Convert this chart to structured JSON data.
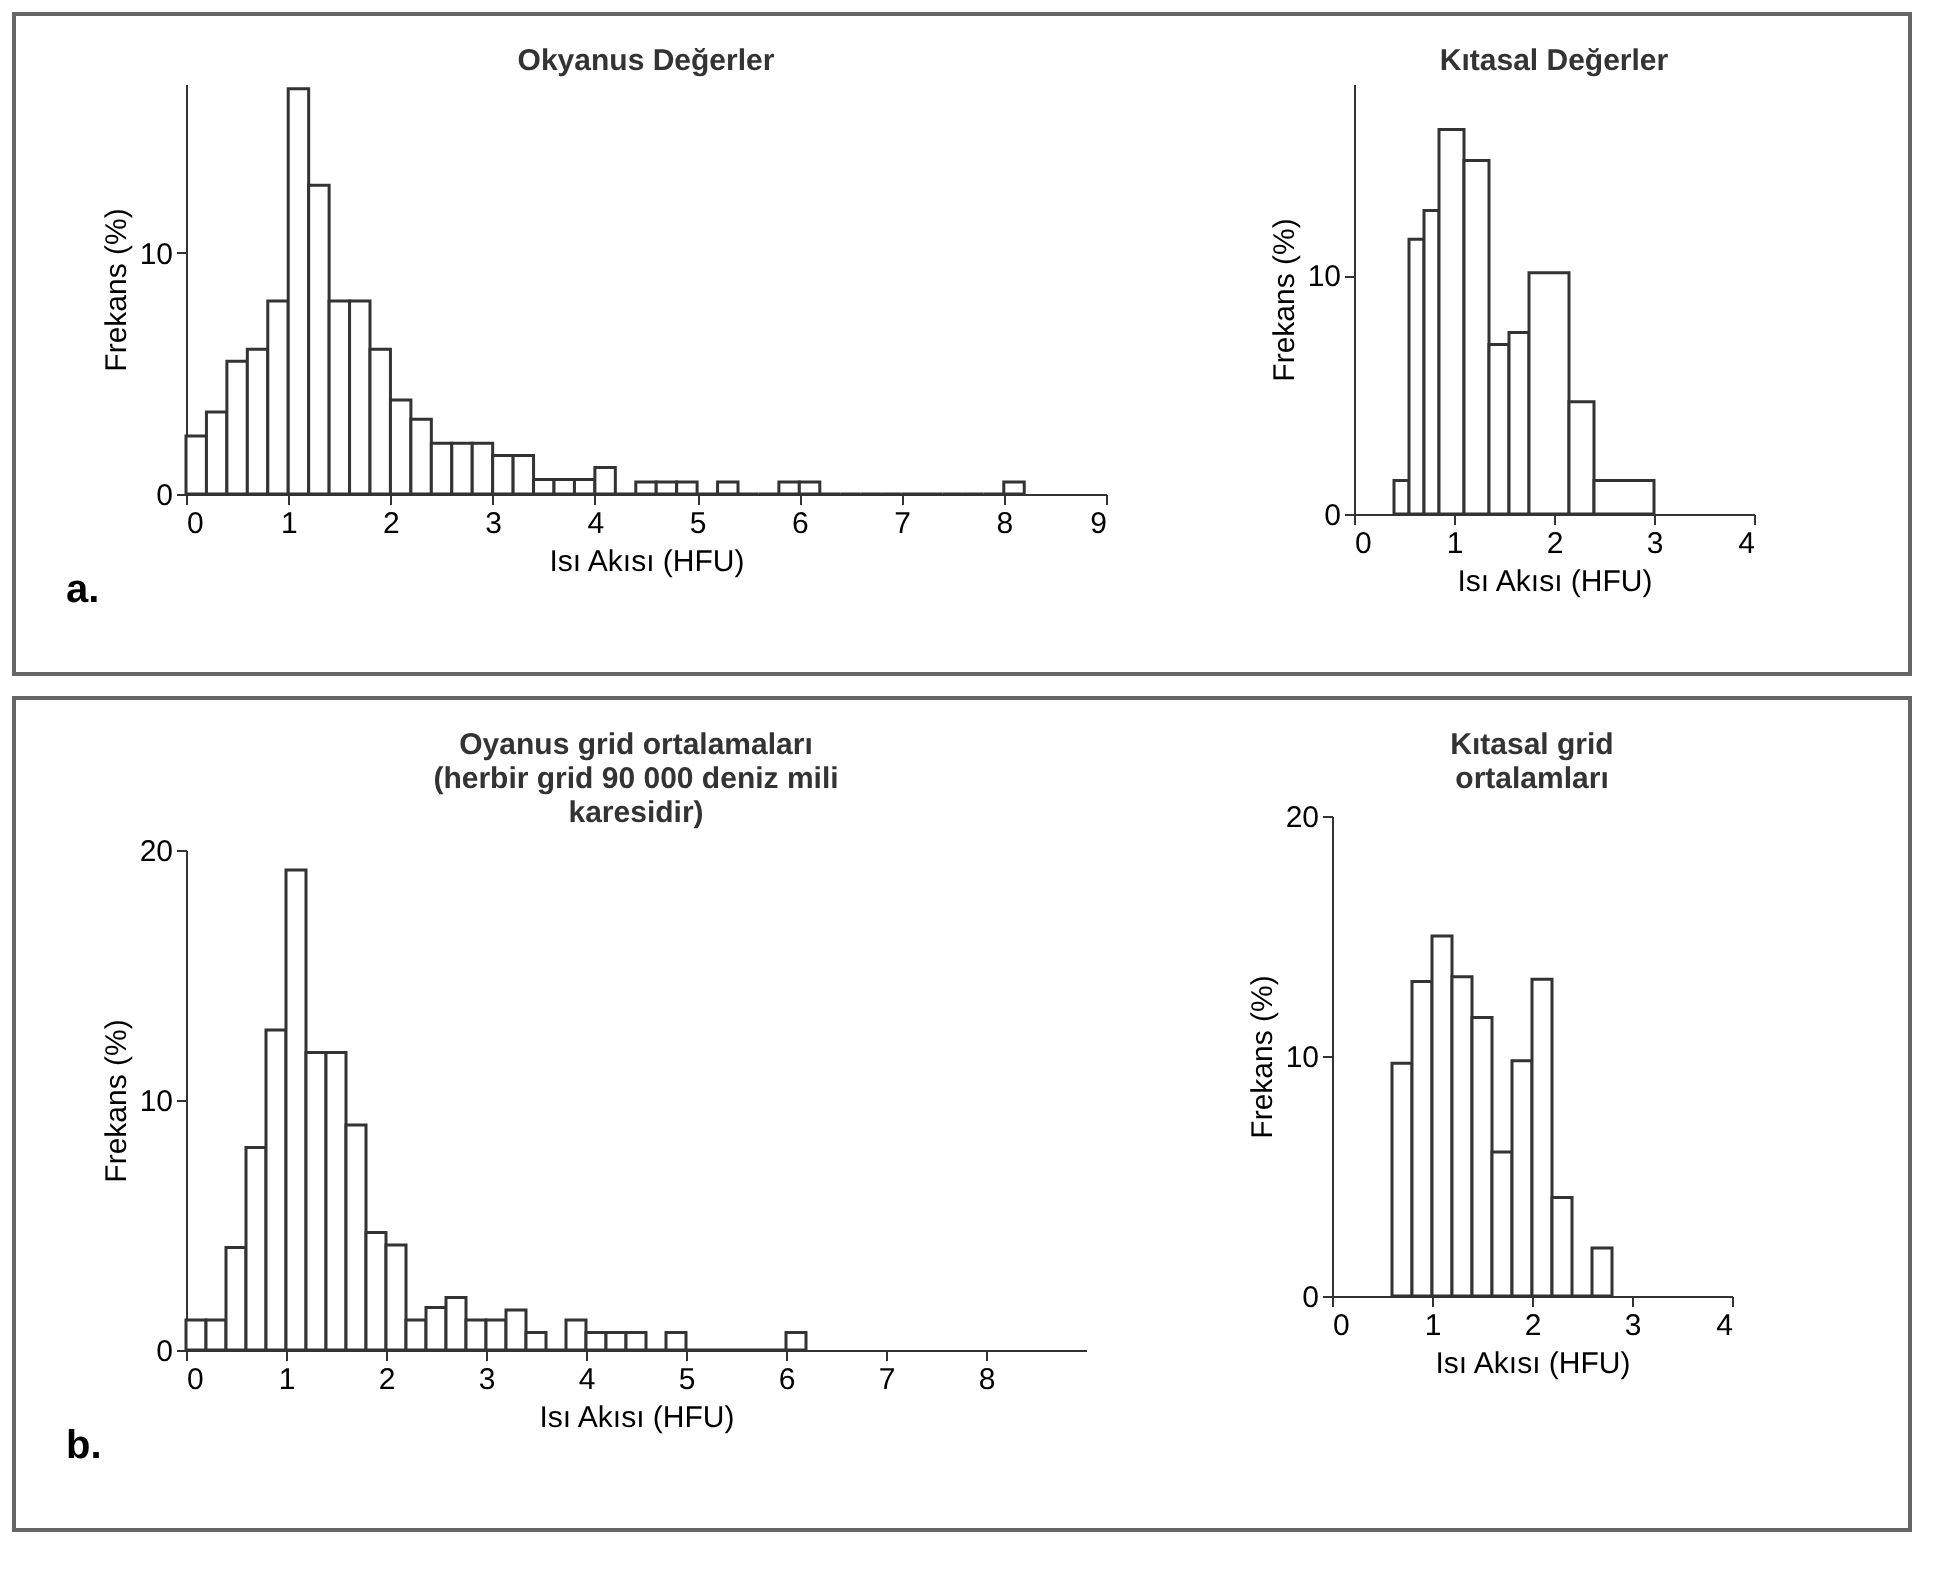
{
  "chart_data": [
    {
      "type": "histogram",
      "title": "Okyanus Değerler",
      "xlabel": "Isı Akısı (HFU)",
      "ylabel": "Frekans (%)",
      "annotations": [
        "a."
      ],
      "color": "#333333",
      "bins": [
        0,
        0.2,
        0.4,
        0.6,
        0.8,
        1.0,
        1.2,
        1.4,
        1.6,
        1.8,
        2.0,
        2.2,
        2.4,
        2.6,
        2.8,
        3.0,
        3.2,
        3.4,
        3.6,
        3.8,
        4.0,
        4.2,
        4.4,
        4.6,
        4.8,
        5.0,
        5.2,
        5.4,
        5.6,
        5.8,
        6.0,
        6.2,
        6.4,
        6.6,
        6.8,
        7.0,
        7.2,
        7.4,
        7.6,
        7.8,
        8.0,
        8.2
      ],
      "values": [
        2.4,
        3.4,
        5.5,
        6.0,
        8.0,
        16.8,
        12.8,
        8.0,
        8.0,
        6.0,
        3.9,
        3.1,
        2.1,
        2.1,
        2.1,
        1.6,
        1.6,
        0.6,
        0.6,
        0.6,
        1.1,
        0,
        0.5,
        0.5,
        0.5,
        0,
        0.5,
        0,
        0,
        0.5,
        0.5,
        0,
        0,
        0,
        0,
        0,
        0,
        0,
        0,
        0,
        0.5
      ],
      "xlim": [
        0,
        9
      ],
      "xticks": [
        0,
        1,
        2,
        3,
        4,
        5,
        6,
        7,
        8,
        9
      ],
      "ylim": [
        0,
        17
      ],
      "yticks": [
        0,
        10
      ]
    },
    {
      "type": "histogram",
      "title": "Kıtasal Değerler",
      "xlabel": "Isı Akısı (HFU)",
      "ylabel": "Frekans (%)",
      "color": "#333333",
      "bins": [
        0.4,
        0.55,
        0.7,
        0.85,
        1.1,
        1.35,
        1.55,
        1.75,
        2.15,
        2.4,
        3.0
      ],
      "values": [
        1.4,
        11.5,
        12.7,
        16.1,
        14.8,
        7.1,
        7.6,
        10.1,
        4.7,
        1.4
      ],
      "xlim": [
        0,
        4
      ],
      "xticks": [
        0,
        1,
        2,
        3,
        4
      ],
      "ylim": [
        0,
        18
      ],
      "yticks": [
        0,
        10
      ]
    },
    {
      "type": "histogram",
      "title": "Oyanus grid ortalamaları\n(herbir grid 90 000 deniz mili\nkaresidir)",
      "xlabel": "Isı Akısı (HFU)",
      "ylabel": "Frekans (%)",
      "annotations": [
        "b."
      ],
      "color": "#333333",
      "bins": [
        0,
        0.2,
        0.4,
        0.6,
        0.8,
        1.0,
        1.2,
        1.4,
        1.6,
        1.8,
        2.0,
        2.2,
        2.4,
        2.6,
        2.8,
        3.0,
        3.2,
        3.4,
        3.6,
        3.8,
        4.0,
        4.2,
        4.4,
        4.6,
        4.8,
        5.0,
        5.2,
        5.4,
        5.6,
        5.8,
        6.0,
        6.2
      ],
      "values": [
        1.2,
        1.2,
        4.1,
        8.1,
        12.8,
        19.2,
        11.9,
        11.9,
        9.0,
        4.7,
        4.2,
        1.2,
        1.7,
        2.1,
        1.2,
        1.2,
        1.6,
        0.7,
        0,
        1.2,
        0.7,
        0.7,
        0.7,
        0,
        0.7,
        0,
        0,
        0,
        0,
        0,
        0.7
      ],
      "xlim": [
        0,
        9
      ],
      "xticks": [
        0,
        1,
        2,
        3,
        4,
        5,
        6,
        7,
        8
      ],
      "ylim": [
        0,
        20
      ],
      "yticks": [
        0,
        10,
        20
      ]
    },
    {
      "type": "histogram",
      "title": "Kıtasal grid\nortalamları",
      "xlabel": "Isı Akısı (HFU)",
      "ylabel": "Frekans (%)",
      "color": "#333333",
      "bins": [
        0.6,
        0.8,
        1.0,
        1.2,
        1.4,
        1.6,
        1.8,
        2.0,
        2.2,
        2.4,
        2.6,
        2.8
      ],
      "values": [
        9.7,
        13.1,
        15.0,
        13.3,
        11.6,
        6.0,
        9.8,
        13.2,
        4.1,
        0,
        2.0
      ],
      "xlim": [
        0,
        4
      ],
      "xticks": [
        0,
        1,
        2,
        3,
        4
      ],
      "ylim": [
        0,
        20
      ],
      "yticks": [
        0,
        10,
        20
      ]
    }
  ]
}
